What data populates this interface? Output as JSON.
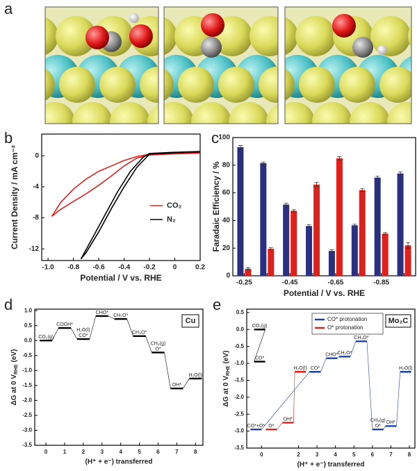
{
  "image_panel": {
    "label": "a"
  },
  "chart_data": [
    {
      "type": "line",
      "label": "b",
      "xlabel": "Potential / V vs. RHE",
      "ylabel": [
        "Current Density / mA cm⁻²"
      ],
      "xlim": [
        -1.05,
        0.2
      ],
      "xticks": [
        {
          "value": -1,
          "label": "-1.0"
        },
        -0.8,
        -0.6,
        -0.4,
        -0.2,
        0,
        0.2
      ],
      "ylim": [
        -13.5,
        2.8
      ],
      "yticks": [
        0,
        -4,
        -8,
        -12
      ],
      "legend": "center-right",
      "series": [
        {
          "name": "CO₂",
          "color": "#e0201b",
          "x": [
            0.2,
            0,
            -0.2,
            -0.3,
            -0.4,
            -0.5,
            -0.6,
            -0.7,
            -0.8,
            -0.9,
            -0.97,
            -0.9,
            -0.8,
            -0.7,
            -0.6,
            -0.5,
            -0.4,
            -0.3,
            -0.2,
            0,
            0.2
          ],
          "values": [
            0.35,
            0.25,
            0.1,
            -0.3,
            -1.3,
            -2.6,
            -3.8,
            -4.9,
            -5.9,
            -6.9,
            -7.8,
            -6.0,
            -4.3,
            -3.0,
            -2.0,
            -1.3,
            -0.6,
            -0.1,
            0.2,
            0.3,
            0.4
          ]
        },
        {
          "name": "N₂",
          "color": "#000000",
          "x": [
            0.2,
            0,
            -0.2,
            -0.3,
            -0.4,
            -0.5,
            -0.6,
            -0.7,
            -0.74,
            -0.65,
            -0.55,
            -0.45,
            -0.35,
            -0.25,
            -0.2,
            0,
            0.2
          ],
          "values": [
            0.5,
            0.4,
            0.2,
            -1.5,
            -4.0,
            -6.8,
            -9.8,
            -12.5,
            -13.3,
            -10.6,
            -7.6,
            -4.6,
            -2.0,
            -0.2,
            0.3,
            0.45,
            0.55
          ]
        }
      ]
    },
    {
      "type": "bar",
      "label": "c",
      "xlabel": "Potential / V vs. RHE",
      "ylabel": [
        "Faradaic Efficiency / %"
      ],
      "categories": [
        "-0.25",
        null,
        "-0.45",
        null,
        "-0.65",
        null,
        "-0.85",
        null
      ],
      "ylim": [
        0,
        100
      ],
      "yticks": [
        0,
        20,
        40,
        60,
        80,
        100
      ],
      "series": [
        {
          "color": "#2a2f80",
          "values": [
            93,
            81.5,
            51.5,
            36,
            18,
            36.5,
            71,
            74
          ],
          "errors": [
            1.2,
            0.8,
            1,
            1,
            0.8,
            0.8,
            1,
            1.2
          ]
        },
        {
          "color": "#e0201b",
          "values": [
            5,
            19.5,
            47,
            66,
            85,
            62,
            30.5,
            22
          ],
          "errors": [
            0.8,
            0.8,
            0.8,
            1.5,
            1.2,
            1,
            0.8,
            2
          ]
        }
      ]
    },
    {
      "type": "step",
      "label": "d",
      "tag": "Cu",
      "xlabel": "(H⁺ + e⁻) transferred",
      "ylabel": [
        "ΔG at 0 V",
        "RHE",
        " (eV)"
      ],
      "xlim": [
        -0.6,
        8.4
      ],
      "xticks": [
        0,
        1,
        2,
        3,
        4,
        5,
        6,
        7,
        8
      ],
      "ylim": [
        -3.5,
        1.05
      ],
      "yticks": [
        {
          "value": 1,
          "label": "1.0"
        },
        0.5,
        {
          "value": 0,
          "label": "0.0"
        },
        -0.5,
        {
          "value": -1,
          "label": "-1.0"
        },
        -1.5,
        {
          "value": -2,
          "label": "-2.0"
        },
        -2.5,
        {
          "value": -3,
          "label": "-3.0"
        },
        -3.5
      ],
      "series": [
        {
          "color": "#000000",
          "x": [
            0,
            1,
            2,
            3,
            4,
            5,
            6,
            7,
            8
          ],
          "values": [
            0,
            0.42,
            0.05,
            0.82,
            0.72,
            0.15,
            -0.4,
            -1.6,
            -1.27
          ],
          "level_labels": [
            [
              "CO₂(g)"
            ],
            [
              "COOH*"
            ],
            [
              "H₂O(l)",
              "CO*"
            ],
            [
              "CHO*"
            ],
            [
              "CH₂O*"
            ],
            [
              "CH₃O*"
            ],
            [
              "CH₄(g)",
              "O*"
            ],
            [
              "OH*"
            ],
            [
              "H₂O(l)"
            ]
          ]
        }
      ]
    },
    {
      "type": "step",
      "label": "e",
      "tag": "Mo₂C",
      "xlabel": "(H⁺ + e⁻) transferred",
      "ylabel": [
        "ΔG at 0 V",
        "RHE",
        " (eV)"
      ],
      "xlim": [
        -0.8,
        8.3
      ],
      "xticks": [
        0,
        2,
        3,
        4,
        5,
        6,
        7,
        8
      ],
      "ylim": [
        -3.5,
        0.6
      ],
      "yticks": [
        0.5,
        {
          "value": 0,
          "label": "0.0"
        },
        -0.5,
        {
          "value": -1,
          "label": "-1.0"
        },
        -1.5,
        {
          "value": -2,
          "label": "-2.0"
        },
        -2.5,
        {
          "value": -3,
          "label": "-3.0"
        },
        -3.5
      ],
      "series": [
        {
          "name": "CO* protonation",
          "color": "#1f3fa0",
          "x": [
            -0.3,
            2.9,
            3.8,
            4.5,
            5.4,
            6.3,
            7.0,
            7.8
          ],
          "values": [
            -2.95,
            -1.25,
            -0.85,
            -0.8,
            -0.35,
            -2.95,
            -2.85,
            -1.25
          ],
          "level_labels": [
            [
              "CO*+O*"
            ],
            [
              "CO*"
            ],
            [
              "CHO*"
            ],
            [
              "CH₂O*"
            ],
            [
              "CH₃O*"
            ],
            [
              "CH₄(g)",
              "O*"
            ],
            [
              "OH*"
            ],
            [
              "H₂O(l)"
            ]
          ]
        },
        {
          "name": "O* protonation",
          "color": "#e0201b",
          "x": [
            0.53,
            1.43,
            2.1
          ],
          "values": [
            -2.95,
            -2.75,
            -1.25
          ],
          "level_labels": [
            [
              "O*"
            ],
            [
              "OH*"
            ],
            [
              "H₂O(l)"
            ]
          ]
        },
        {
          "color": "#000000",
          "x": [
            -0.1,
            -0.1
          ],
          "values": [
            0,
            -0.95
          ],
          "level_labels": [
            [
              "CO₂(g)"
            ],
            [
              "CO*"
            ]
          ]
        }
      ]
    }
  ]
}
